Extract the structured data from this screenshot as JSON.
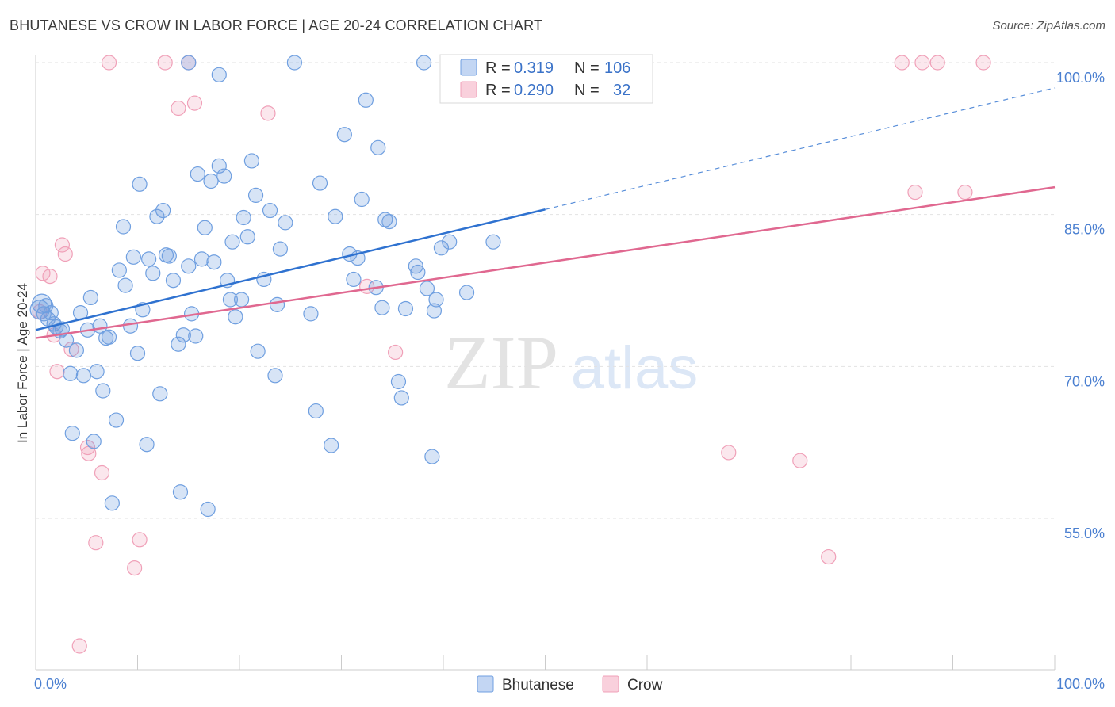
{
  "title": "BHUTANESE VS CROW IN LABOR FORCE | AGE 20-24 CORRELATION CHART",
  "source": "Source: ZipAtlas.com",
  "colors": {
    "blue": "#6f9fe0",
    "blue_line": "#2f72d0",
    "pink": "#f0a0b8",
    "pink_line": "#e06890",
    "tick": "#4a7fd0"
  },
  "watermark": {
    "zip": "ZIP",
    "atlas": "atlas"
  },
  "legend": {
    "rows": [
      {
        "r_label": "R =",
        "r_value": "0.319",
        "n_label": "N =",
        "n_value": "106"
      },
      {
        "r_label": "R =",
        "r_value": "0.290",
        "n_label": "N =",
        "n_value": "32"
      }
    ]
  },
  "chart_data": {
    "type": "scatter",
    "title": "BHUTANESE VS CROW IN LABOR FORCE | AGE 20-24 CORRELATION CHART",
    "xlabel": "",
    "ylabel": "In Labor Force | Age 20-24",
    "xlim": [
      0,
      100
    ],
    "ylim": [
      42,
      102
    ],
    "x_tick_labels": [
      "0.0%",
      "100.0%"
    ],
    "y_ticks": [
      55,
      70,
      85,
      100
    ],
    "y_tick_labels": [
      "55.0%",
      "70.0%",
      "85.0%",
      "100.0%"
    ],
    "grid": true,
    "legend_position": "bottom-center",
    "series": [
      {
        "name": "Bhutanese",
        "color": "#6f9fe0",
        "trend": {
          "x0": 0,
          "y0": 73.6,
          "x1": 50,
          "y1": 85.5,
          "dashed_to_x": 100,
          "dashed_to_y": 97.5
        },
        "points": [
          [
            0.4,
            75.6
          ],
          [
            0.6,
            76.2
          ],
          [
            0.8,
            75.2
          ],
          [
            1.0,
            76.0
          ],
          [
            1.2,
            74.7
          ],
          [
            1.5,
            75.3
          ],
          [
            1.8,
            74.2
          ],
          [
            2.0,
            73.9
          ],
          [
            2.4,
            73.5
          ],
          [
            2.6,
            73.7
          ],
          [
            3.0,
            72.6
          ],
          [
            3.4,
            69.3
          ],
          [
            3.6,
            63.4
          ],
          [
            4.0,
            71.6
          ],
          [
            4.4,
            75.3
          ],
          [
            4.7,
            69.1
          ],
          [
            5.1,
            73.6
          ],
          [
            5.4,
            76.8
          ],
          [
            5.7,
            62.6
          ],
          [
            6.0,
            69.5
          ],
          [
            6.3,
            74.0
          ],
          [
            6.6,
            67.6
          ],
          [
            6.9,
            72.8
          ],
          [
            7.2,
            72.9
          ],
          [
            7.5,
            56.5
          ],
          [
            7.9,
            64.7
          ],
          [
            8.2,
            79.5
          ],
          [
            8.6,
            83.8
          ],
          [
            8.8,
            78.0
          ],
          [
            9.3,
            74.0
          ],
          [
            9.6,
            80.8
          ],
          [
            10.0,
            71.3
          ],
          [
            10.2,
            88.0
          ],
          [
            10.5,
            75.6
          ],
          [
            10.9,
            62.3
          ],
          [
            11.1,
            80.6
          ],
          [
            11.5,
            79.2
          ],
          [
            11.9,
            84.8
          ],
          [
            12.2,
            67.3
          ],
          [
            12.5,
            85.4
          ],
          [
            12.8,
            81.0
          ],
          [
            13.1,
            80.9
          ],
          [
            13.5,
            78.5
          ],
          [
            14.0,
            72.2
          ],
          [
            14.2,
            57.6
          ],
          [
            14.5,
            73.1
          ],
          [
            15.0,
            79.9
          ],
          [
            15.3,
            75.2
          ],
          [
            15.7,
            73.0
          ],
          [
            15.9,
            89.0
          ],
          [
            16.3,
            80.6
          ],
          [
            16.6,
            83.7
          ],
          [
            16.9,
            55.9
          ],
          [
            17.2,
            88.3
          ],
          [
            17.5,
            80.3
          ],
          [
            18.0,
            89.8
          ],
          [
            18.5,
            88.8
          ],
          [
            18.8,
            78.5
          ],
          [
            19.1,
            76.6
          ],
          [
            19.3,
            82.3
          ],
          [
            19.6,
            74.9
          ],
          [
            20.2,
            76.6
          ],
          [
            20.4,
            84.7
          ],
          [
            20.8,
            82.8
          ],
          [
            21.2,
            90.3
          ],
          [
            21.6,
            86.9
          ],
          [
            21.8,
            71.5
          ],
          [
            22.4,
            78.6
          ],
          [
            23.0,
            85.4
          ],
          [
            23.5,
            69.1
          ],
          [
            23.7,
            76.1
          ],
          [
            24.0,
            81.6
          ],
          [
            24.5,
            84.2
          ],
          [
            25.4,
            100.0
          ],
          [
            15.0,
            100.0
          ],
          [
            18.0,
            98.8
          ],
          [
            27.0,
            75.2
          ],
          [
            27.5,
            65.6
          ],
          [
            27.9,
            88.1
          ],
          [
            29.0,
            62.2
          ],
          [
            29.4,
            84.8
          ],
          [
            30.3,
            92.9
          ],
          [
            30.8,
            81.1
          ],
          [
            31.2,
            78.6
          ],
          [
            31.6,
            80.7
          ],
          [
            32.0,
            86.5
          ],
          [
            32.4,
            96.3
          ],
          [
            33.4,
            77.8
          ],
          [
            33.6,
            91.6
          ],
          [
            34.0,
            75.8
          ],
          [
            34.3,
            84.5
          ],
          [
            34.7,
            84.3
          ],
          [
            35.6,
            68.5
          ],
          [
            35.9,
            66.9
          ],
          [
            36.3,
            75.7
          ],
          [
            37.3,
            79.9
          ],
          [
            37.5,
            79.3
          ],
          [
            38.1,
            100.0
          ],
          [
            38.4,
            77.7
          ],
          [
            38.9,
            61.1
          ],
          [
            39.1,
            75.5
          ],
          [
            39.3,
            76.6
          ],
          [
            39.8,
            81.7
          ],
          [
            40.6,
            82.3
          ],
          [
            42.3,
            77.3
          ],
          [
            44.9,
            82.3
          ]
        ]
      },
      {
        "name": "Crow",
        "color": "#f0a0b8",
        "trend": {
          "x0": 0,
          "y0": 72.8,
          "x1": 100,
          "y1": 87.7
        },
        "points": [
          [
            0.4,
            75.4
          ],
          [
            0.7,
            79.2
          ],
          [
            1.4,
            78.9
          ],
          [
            1.8,
            73.1
          ],
          [
            2.1,
            69.5
          ],
          [
            2.6,
            82.0
          ],
          [
            2.9,
            81.1
          ],
          [
            3.5,
            71.7
          ],
          [
            4.3,
            42.4
          ],
          [
            5.1,
            62.0
          ],
          [
            5.2,
            61.4
          ],
          [
            5.9,
            52.6
          ],
          [
            6.5,
            59.5
          ],
          [
            7.2,
            100.0
          ],
          [
            9.7,
            50.1
          ],
          [
            10.2,
            52.9
          ],
          [
            12.7,
            100.0
          ],
          [
            14.0,
            95.5
          ],
          [
            15.0,
            100.0
          ],
          [
            15.6,
            96.0
          ],
          [
            22.8,
            95.0
          ],
          [
            32.5,
            77.9
          ],
          [
            35.3,
            71.4
          ],
          [
            68.0,
            61.5
          ],
          [
            75.0,
            60.7
          ],
          [
            77.8,
            51.2
          ],
          [
            85.0,
            100.0
          ],
          [
            86.3,
            87.2
          ],
          [
            87.0,
            100.0
          ],
          [
            88.5,
            100.0
          ],
          [
            91.2,
            87.2
          ],
          [
            93.0,
            100.0
          ]
        ]
      }
    ],
    "legend_entries": [
      "Bhutanese",
      "Crow"
    ]
  }
}
